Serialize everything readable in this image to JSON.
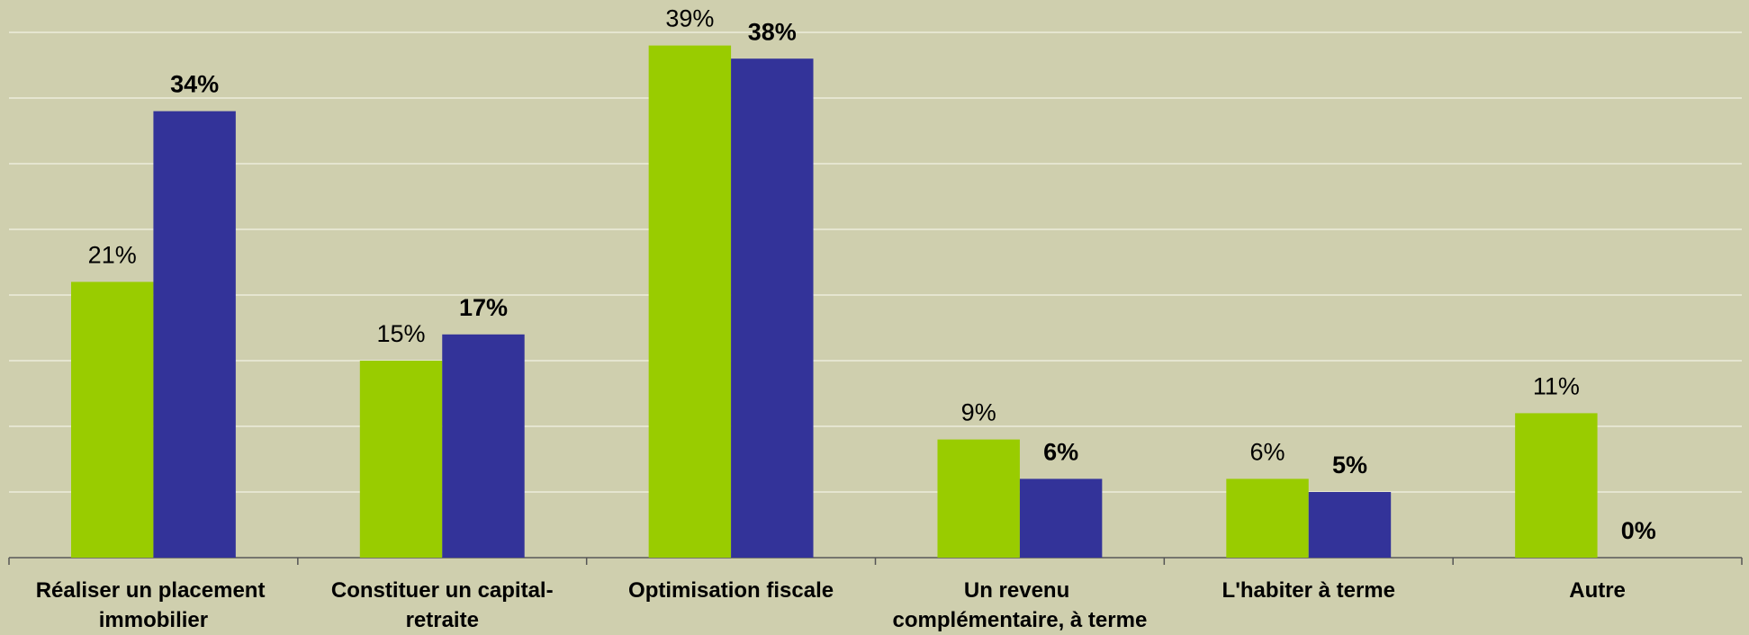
{
  "chart_data": {
    "type": "bar",
    "categories": [
      "Réaliser un placement immobilier",
      "Constituer un capital-retraite",
      "Optimisation fiscale",
      "Un revenu complémentaire, à terme",
      "L'habiter à terme",
      "Autre"
    ],
    "series": [
      {
        "color": "#99cc00",
        "values": [
          21,
          15,
          39,
          9,
          6,
          11
        ],
        "value_labels": [
          "21%",
          "15%",
          "39%",
          "9%",
          "6%",
          "11%"
        ]
      },
      {
        "color": "#333399",
        "values": [
          34,
          17,
          38,
          6,
          5,
          0
        ],
        "value_labels": [
          "34%",
          "17%",
          "38%",
          "6%",
          "5%",
          "0%"
        ]
      }
    ],
    "ylim": [
      0,
      40
    ],
    "yticks": [
      0,
      5,
      10,
      15,
      20,
      25,
      30,
      35,
      40
    ],
    "grid": true
  }
}
